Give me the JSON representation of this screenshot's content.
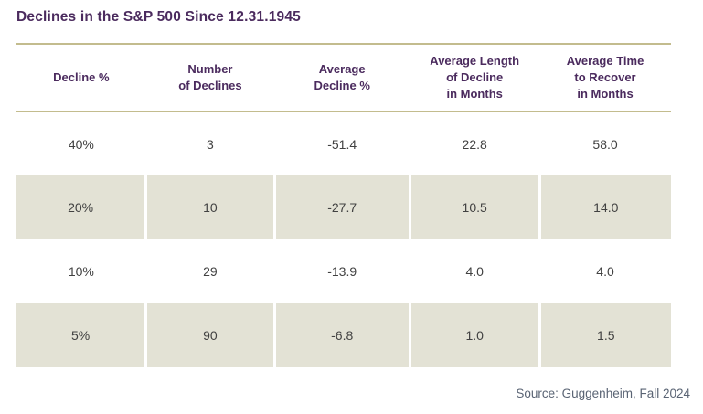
{
  "title": "Declines in the S&P 500 Since 12.31.1945",
  "source": "Source: Guggenheim, Fall 2024",
  "colors": {
    "title_text": "#4b2b5e",
    "header_text": "#4b2b5e",
    "rule_tan": "#c3bc8e",
    "row_shade": "#e3e2d5",
    "data_text": "#414141",
    "source_text": "#5a6474",
    "background": "#ffffff"
  },
  "table": {
    "headers": [
      "Decline %",
      "Number\nof Declines",
      "Average\nDecline %",
      "Average Length\nof Decline\nin Months",
      "Average Time\nto Recover\nin Months"
    ],
    "rows": [
      [
        "40%",
        "3",
        "-51.4",
        "22.8",
        "58.0"
      ],
      [
        "20%",
        "10",
        "-27.7",
        "10.5",
        "14.0"
      ],
      [
        "10%",
        "29",
        "-13.9",
        "4.0",
        "4.0"
      ],
      [
        "5%",
        "90",
        "-6.8",
        "1.0",
        "1.5"
      ]
    ]
  },
  "chart_data": {
    "type": "table",
    "title": "Declines in the S&P 500 Since 12.31.1945",
    "columns": [
      "Decline %",
      "Number of Declines",
      "Average Decline %",
      "Average Length of Decline in Months",
      "Average Time to Recover in Months"
    ],
    "rows": [
      {
        "decline_pct": "40%",
        "number_of_declines": 3,
        "average_decline_pct": -51.4,
        "avg_length_of_decline_months": 22.8,
        "avg_time_to_recover_months": 58.0
      },
      {
        "decline_pct": "20%",
        "number_of_declines": 10,
        "average_decline_pct": -27.7,
        "avg_length_of_decline_months": 10.5,
        "avg_time_to_recover_months": 14.0
      },
      {
        "decline_pct": "10%",
        "number_of_declines": 29,
        "average_decline_pct": -13.9,
        "avg_length_of_decline_months": 4.0,
        "avg_time_to_recover_months": 4.0
      },
      {
        "decline_pct": "5%",
        "number_of_declines": 90,
        "average_decline_pct": -6.8,
        "avg_length_of_decline_months": 1.0,
        "avg_time_to_recover_months": 1.5
      }
    ],
    "source": "Source: Guggenheim, Fall 2024",
    "layout": {
      "shaded_row_indexes": [
        1,
        3
      ],
      "grid": "horizontal rules above/below header only",
      "alignment": "center"
    }
  }
}
